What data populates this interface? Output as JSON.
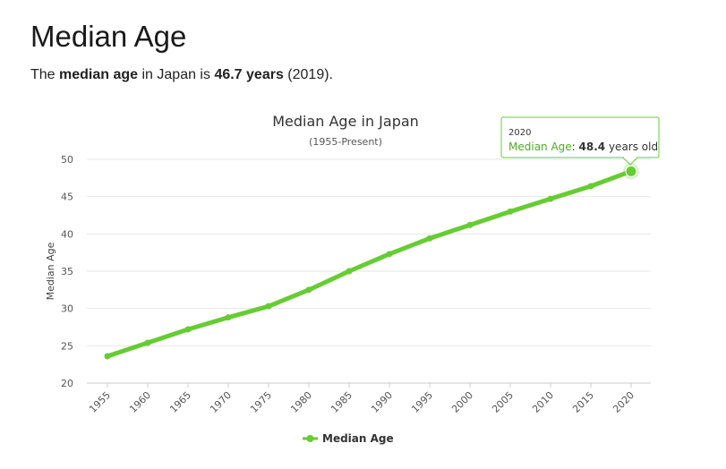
{
  "page": {
    "heading": "Median Age",
    "summary": {
      "prefix": "The ",
      "term": "median age",
      "middle": " in Japan is ",
      "value": "46.7 years",
      "suffix": " (2019)."
    }
  },
  "tooltip": {
    "year": "2020",
    "series_label": "Median Age",
    "separator": ": ",
    "value": "48.4",
    "unit": " years old"
  },
  "colors": {
    "series": "#66cc33",
    "tooltip_border": "#66cc33",
    "series_label": "#4cae1f",
    "grid": "#e6e6e6"
  },
  "chart_data": {
    "type": "line",
    "title": "Median Age in Japan",
    "subtitle": "(1955-Present)",
    "xlabel": "",
    "ylabel": "Median Age",
    "ylim": [
      20,
      50
    ],
    "yticks": [
      20,
      25,
      30,
      35,
      40,
      45,
      50
    ],
    "x": [
      "1955",
      "1960",
      "1965",
      "1970",
      "1975",
      "1980",
      "1985",
      "1990",
      "1995",
      "2000",
      "2005",
      "2010",
      "2015",
      "2020"
    ],
    "series": [
      {
        "name": "Median Age",
        "values": [
          23.6,
          25.4,
          27.2,
          28.8,
          30.3,
          32.5,
          35.0,
          37.3,
          39.4,
          41.2,
          43.0,
          44.7,
          46.4,
          48.4
        ]
      }
    ],
    "highlight_index": 13,
    "grid": true,
    "legend": "bottom-center"
  }
}
